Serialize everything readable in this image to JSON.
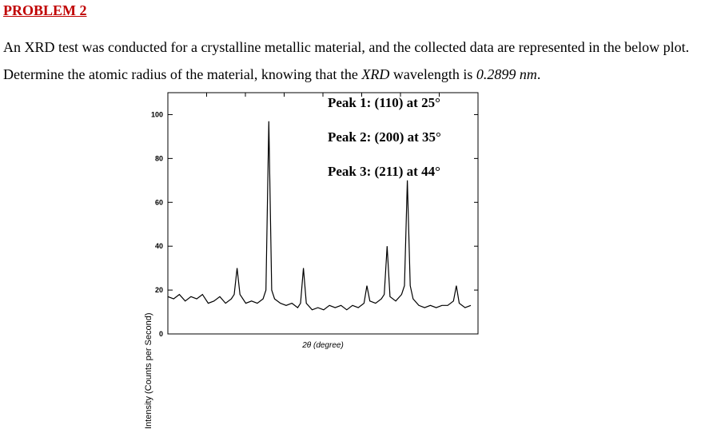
{
  "heading": "PROBLEM 2",
  "paragraph": {
    "part1": "An XRD test was conducted for a crystalline metallic material, and the collected data are represented in the below plot. Determine the atomic radius of the material, knowing that the ",
    "xrd": "XRD",
    "part2": " wavelength is ",
    "wavelength": "0.2899 nm",
    "part3": "."
  },
  "chart_data": {
    "type": "line",
    "ylabel": "Intensity (Counts per Second)",
    "xlabel": "2θ (degree)",
    "ylim": [
      0,
      110
    ],
    "yticks": [
      "0",
      "20",
      "40",
      "60",
      "80",
      "100"
    ],
    "annotations": [
      "Peak 1: (110) at 25°",
      "Peak 2: (200) at 35°",
      "Peak 3: (211) at 44°"
    ],
    "series": [
      {
        "values": [
          [
            0,
            17
          ],
          [
            4,
            16
          ],
          [
            8,
            18
          ],
          [
            12,
            15
          ],
          [
            16,
            17
          ],
          [
            20,
            16
          ],
          [
            24,
            18
          ],
          [
            28,
            14
          ],
          [
            32,
            15
          ],
          [
            36,
            17
          ],
          [
            40,
            14
          ],
          [
            44,
            16
          ],
          [
            46,
            18
          ],
          [
            48,
            30
          ],
          [
            50,
            18
          ],
          [
            54,
            14
          ],
          [
            58,
            15
          ],
          [
            62,
            14
          ],
          [
            66,
            16
          ],
          [
            68,
            20
          ],
          [
            70,
            97
          ],
          [
            72,
            20
          ],
          [
            74,
            16
          ],
          [
            78,
            14
          ],
          [
            82,
            13
          ],
          [
            86,
            14
          ],
          [
            90,
            12
          ],
          [
            92,
            14
          ],
          [
            94,
            30
          ],
          [
            96,
            14
          ],
          [
            100,
            11
          ],
          [
            104,
            12
          ],
          [
            108,
            11
          ],
          [
            112,
            13
          ],
          [
            116,
            12
          ],
          [
            120,
            13
          ],
          [
            124,
            11
          ],
          [
            128,
            13
          ],
          [
            132,
            12
          ],
          [
            136,
            14
          ],
          [
            138,
            22
          ],
          [
            140,
            15
          ],
          [
            144,
            14
          ],
          [
            148,
            16
          ],
          [
            150,
            18
          ],
          [
            152,
            40
          ],
          [
            154,
            17
          ],
          [
            158,
            15
          ],
          [
            162,
            18
          ],
          [
            164,
            22
          ],
          [
            166,
            70
          ],
          [
            168,
            22
          ],
          [
            170,
            16
          ],
          [
            174,
            13
          ],
          [
            178,
            12
          ],
          [
            182,
            13
          ],
          [
            186,
            12
          ],
          [
            190,
            13
          ],
          [
            194,
            13
          ],
          [
            198,
            15
          ],
          [
            200,
            22
          ],
          [
            202,
            14
          ],
          [
            206,
            12
          ],
          [
            210,
            13
          ]
        ]
      }
    ]
  }
}
